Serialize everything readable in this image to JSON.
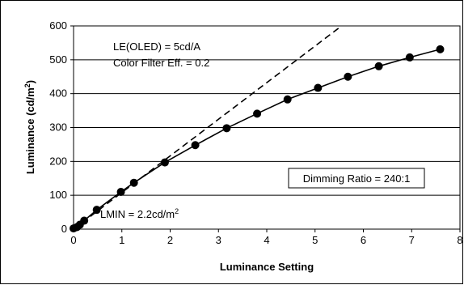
{
  "chart_data": {
    "type": "line",
    "xlabel": "Luminance Setting",
    "ylabel_main": "Luminance (cd/m",
    "ylabel_sup": "2",
    "ylabel_close": ")",
    "xlim": [
      0,
      8
    ],
    "ylim": [
      0,
      600
    ],
    "xticks": [
      "0",
      "1",
      "2",
      "3",
      "4",
      "5",
      "6",
      "7",
      "8"
    ],
    "yticks": [
      "0",
      "100",
      "200",
      "300",
      "400",
      "500",
      "600"
    ],
    "grid": "horizontal",
    "series": [
      {
        "style": "solid-with-markers",
        "x": [
          0.0,
          0.07,
          0.13,
          0.22,
          0.48,
          0.98,
          1.25,
          1.89,
          2.52,
          3.17,
          3.8,
          4.43,
          5.06,
          5.68,
          6.32,
          6.96,
          7.59
        ],
        "y": [
          2.2,
          6,
          13,
          25,
          57,
          110,
          137,
          197,
          248,
          298,
          341,
          383,
          417,
          450,
          481,
          507,
          531
        ]
      },
      {
        "style": "dashed",
        "x": [
          0,
          5.55
        ],
        "y": [
          0,
          600
        ]
      }
    ],
    "annotations": {
      "line1": "LE(OLED) = 5cd/A",
      "line2": "Color Filter Eff. = 0.2",
      "lmin_main": "LMIN = 2.2cd/m",
      "lmin_sup": "2",
      "dimming": "Dimming Ratio = 240:1"
    }
  }
}
